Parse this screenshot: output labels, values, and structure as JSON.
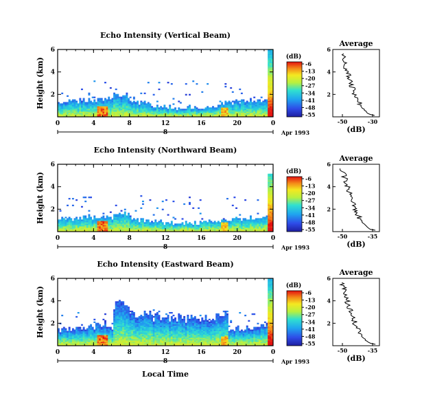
{
  "figure": {
    "xlabel": "Local Time",
    "date_label": "Apr 1993",
    "day_label": "8",
    "colorbar_label": "(dB)",
    "colorbar_ticks": [
      "-6",
      "-13",
      "-20",
      "-27",
      "-34",
      "-41",
      "-48",
      "-55"
    ],
    "profile_title": "Average",
    "profile_xlabel": "(dB)"
  },
  "chart_data": [
    {
      "type": "heatmap",
      "title": "Echo Intensity (Vertical Beam)",
      "xlabel": "Local Time",
      "ylabel": "Height (km)",
      "xlim": [
        0,
        24
      ],
      "xticks": [
        "0",
        "4",
        "8",
        "12",
        "16",
        "20",
        "0"
      ],
      "ylim": [
        0,
        6
      ],
      "yticks": [
        "6",
        "4",
        "2"
      ],
      "colorbar": {
        "label": "(dB)",
        "range": [
          -55,
          -6
        ],
        "ticks": [
          -6,
          -13,
          -20,
          -27,
          -34,
          -41,
          -48,
          -55
        ]
      },
      "profile": {
        "title": "Average",
        "xlabel": "(dB)",
        "xticks": [
          "-50",
          "-30"
        ],
        "yticks": [
          "6",
          "4",
          "2"
        ]
      }
    },
    {
      "type": "heatmap",
      "title": "Echo Intensity (Northward Beam)",
      "xlabel": "Local Time",
      "ylabel": "Height (km)",
      "xlim": [
        0,
        24
      ],
      "xticks": [
        "0",
        "4",
        "8",
        "12",
        "16",
        "20",
        "0"
      ],
      "ylim": [
        0,
        6
      ],
      "yticks": [
        "6",
        "4",
        "2"
      ],
      "colorbar": {
        "label": "(dB)",
        "range": [
          -55,
          -6
        ],
        "ticks": [
          -6,
          -13,
          -20,
          -27,
          -34,
          -41,
          -48,
          -55
        ]
      },
      "profile": {
        "title": "Average",
        "xlabel": "(dB)",
        "xticks": [
          "-50",
          "-35"
        ],
        "yticks": [
          "6",
          "4",
          "2"
        ]
      }
    },
    {
      "type": "heatmap",
      "title": "Echo Intensity (Eastward Beam)",
      "xlabel": "Local Time",
      "ylabel": "Height (km)",
      "xlim": [
        0,
        24
      ],
      "xticks": [
        "0",
        "4",
        "8",
        "12",
        "16",
        "20",
        "0"
      ],
      "ylim": [
        0,
        6
      ],
      "yticks": [
        "6",
        "4",
        "2"
      ],
      "colorbar": {
        "label": "(dB)",
        "range": [
          -55,
          -6
        ],
        "ticks": [
          -6,
          -13,
          -20,
          -27,
          -34,
          -41,
          -48,
          -55
        ]
      },
      "profile": {
        "title": "Average",
        "xlabel": "(dB)",
        "xticks": [
          "-50",
          "-35"
        ],
        "yticks": [
          "6",
          "4",
          "2"
        ]
      }
    }
  ]
}
